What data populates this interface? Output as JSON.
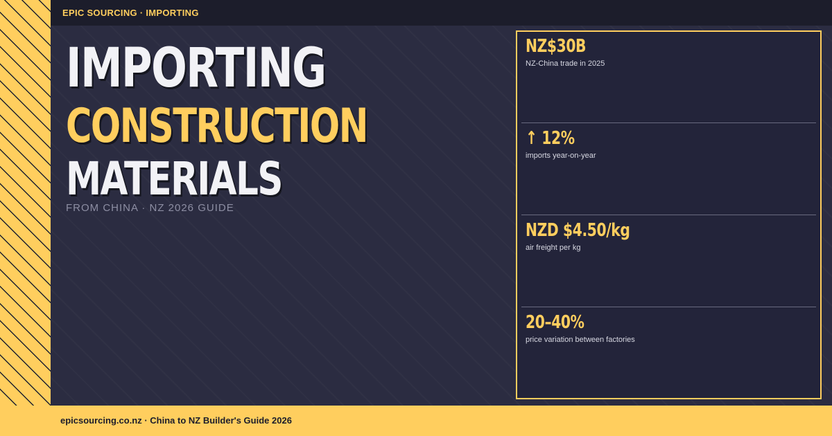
{
  "header": {
    "label": "EPIC SOURCING · IMPORTING"
  },
  "hero": {
    "line1": "IMPORTING",
    "line2": "CONSTRUCTION",
    "line3": "MATERIALS",
    "subtitle": "FROM CHINA · NZ 2026 GUIDE"
  },
  "stats": [
    {
      "value": "NZ$30B",
      "label": "NZ-China trade in 2025"
    },
    {
      "value": "↑ 12%",
      "label": "imports year-on-year"
    },
    {
      "value": "NZD $4.50/kg",
      "label": "air freight per kg"
    },
    {
      "value": "20–40%",
      "label": "price variation between factories"
    }
  ],
  "footer": {
    "text": "epicsourcing.co.nz · China to NZ Builder's Guide 2026"
  },
  "colors": {
    "accent": "#ffce5e",
    "background": "#2b2c41",
    "topbar": "#1c1d2b",
    "panel": "#23243a"
  }
}
